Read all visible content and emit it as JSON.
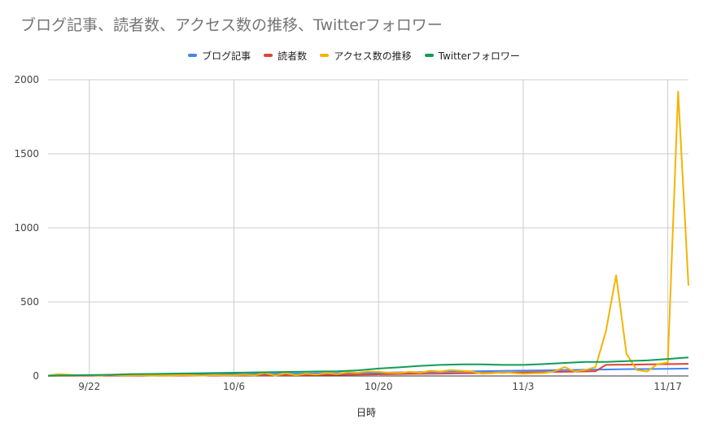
{
  "chart_data": {
    "type": "line",
    "title": "ブログ記事、読者数、アクセス数の推移、Twitterフォロワー",
    "xlabel": "日時",
    "ylabel": "",
    "ylim": [
      0,
      2000
    ],
    "yticks": [
      0,
      500,
      1000,
      1500,
      2000
    ],
    "x_tick_labels": [
      {
        "label": "9/22",
        "day": 4
      },
      {
        "label": "10/6",
        "day": 18
      },
      {
        "label": "10/20",
        "day": 32
      },
      {
        "label": "11/3",
        "day": 46
      },
      {
        "label": "11/17",
        "day": 60
      }
    ],
    "x_range_days": [
      0,
      62
    ],
    "grid": true,
    "legend_position": "top",
    "colors": {
      "blog": "#4285f4",
      "readers": "#db4437",
      "access": "#f4b400",
      "twitter": "#0f9d58"
    },
    "series": [
      {
        "name": "ブログ記事",
        "color": "#4285f4",
        "points": [
          [
            0,
            2
          ],
          [
            4,
            4
          ],
          [
            8,
            6
          ],
          [
            12,
            8
          ],
          [
            16,
            10
          ],
          [
            20,
            13
          ],
          [
            24,
            16
          ],
          [
            28,
            19
          ],
          [
            32,
            22
          ],
          [
            36,
            26
          ],
          [
            40,
            30
          ],
          [
            44,
            34
          ],
          [
            48,
            38
          ],
          [
            52,
            42
          ],
          [
            56,
            46
          ],
          [
            60,
            48
          ],
          [
            62,
            50
          ]
        ]
      },
      {
        "name": "読者数",
        "color": "#db4437",
        "points": [
          [
            0,
            1
          ],
          [
            8,
            2
          ],
          [
            14,
            3
          ],
          [
            18,
            4
          ],
          [
            22,
            5
          ],
          [
            26,
            7
          ],
          [
            30,
            10
          ],
          [
            34,
            13
          ],
          [
            38,
            16
          ],
          [
            42,
            20
          ],
          [
            46,
            24
          ],
          [
            50,
            28
          ],
          [
            53,
            32
          ],
          [
            54,
            75
          ],
          [
            58,
            78
          ],
          [
            62,
            82
          ]
        ]
      },
      {
        "name": "アクセス数の推移",
        "color": "#f4b400",
        "points": [
          [
            0,
            2
          ],
          [
            1,
            12
          ],
          [
            2,
            8
          ],
          [
            3,
            5
          ],
          [
            4,
            6
          ],
          [
            5,
            3
          ],
          [
            6,
            8
          ],
          [
            7,
            5
          ],
          [
            8,
            4
          ],
          [
            9,
            6
          ],
          [
            10,
            3
          ],
          [
            11,
            5
          ],
          [
            12,
            4
          ],
          [
            13,
            7
          ],
          [
            14,
            5
          ],
          [
            15,
            3
          ],
          [
            16,
            6
          ],
          [
            17,
            4
          ],
          [
            18,
            5
          ],
          [
            19,
            8
          ],
          [
            20,
            4
          ],
          [
            21,
            20
          ],
          [
            22,
            3
          ],
          [
            23,
            18
          ],
          [
            24,
            5
          ],
          [
            25,
            15
          ],
          [
            26,
            10
          ],
          [
            27,
            20
          ],
          [
            28,
            12
          ],
          [
            29,
            25
          ],
          [
            30,
            22
          ],
          [
            31,
            30
          ],
          [
            32,
            28
          ],
          [
            33,
            22
          ],
          [
            34,
            20
          ],
          [
            35,
            28
          ],
          [
            36,
            22
          ],
          [
            37,
            35
          ],
          [
            38,
            30
          ],
          [
            39,
            40
          ],
          [
            40,
            35
          ],
          [
            41,
            30
          ],
          [
            42,
            15
          ],
          [
            43,
            18
          ],
          [
            44,
            25
          ],
          [
            45,
            20
          ],
          [
            46,
            15
          ],
          [
            47,
            18
          ],
          [
            48,
            20
          ],
          [
            49,
            30
          ],
          [
            50,
            60
          ],
          [
            51,
            30
          ],
          [
            52,
            40
          ],
          [
            53,
            60
          ],
          [
            54,
            300
          ],
          [
            55,
            680
          ],
          [
            56,
            150
          ],
          [
            57,
            40
          ],
          [
            58,
            30
          ],
          [
            59,
            80
          ],
          [
            60,
            90
          ],
          [
            61,
            1920
          ],
          [
            62,
            610
          ]
        ]
      },
      {
        "name": "Twitterフォロワー",
        "color": "#0f9d58",
        "points": [
          [
            0,
            2
          ],
          [
            2,
            4
          ],
          [
            4,
            6
          ],
          [
            6,
            8
          ],
          [
            8,
            12
          ],
          [
            10,
            14
          ],
          [
            12,
            16
          ],
          [
            14,
            18
          ],
          [
            16,
            20
          ],
          [
            18,
            22
          ],
          [
            20,
            24
          ],
          [
            22,
            26
          ],
          [
            24,
            28
          ],
          [
            26,
            30
          ],
          [
            28,
            32
          ],
          [
            30,
            38
          ],
          [
            32,
            50
          ],
          [
            34,
            58
          ],
          [
            36,
            68
          ],
          [
            38,
            75
          ],
          [
            40,
            78
          ],
          [
            42,
            78
          ],
          [
            44,
            75
          ],
          [
            46,
            75
          ],
          [
            48,
            80
          ],
          [
            50,
            88
          ],
          [
            52,
            95
          ],
          [
            54,
            95
          ],
          [
            56,
            100
          ],
          [
            58,
            105
          ],
          [
            60,
            115
          ],
          [
            62,
            125
          ]
        ]
      }
    ]
  }
}
